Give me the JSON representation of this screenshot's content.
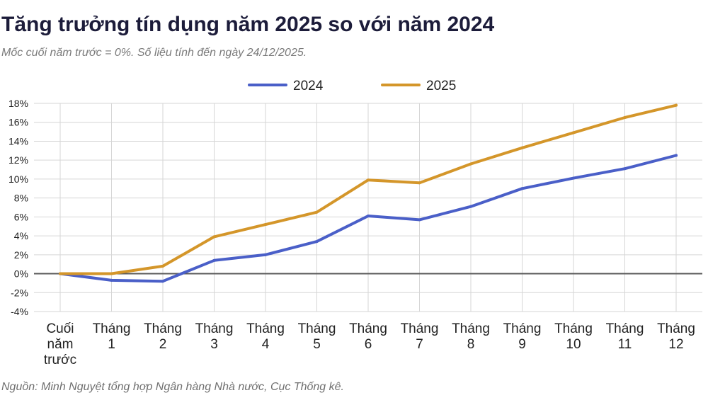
{
  "chart_data": {
    "type": "line",
    "title": "Tăng trưởng tín dụng năm 2025 so với năm 2024",
    "subtitle": "Mốc cuối năm trước = 0%. Số liệu tính đến ngày 24/12/2025.",
    "source": "Nguồn: Minh Nguyệt tổng hợp Ngân hàng Nhà nước, Cục Thống kê.",
    "xlabel": "",
    "ylabel": "",
    "ylim": [
      -4,
      18
    ],
    "y_ticks": [
      "-4%",
      "-2%",
      "0%",
      "2%",
      "4%",
      "6%",
      "8%",
      "10%",
      "12%",
      "14%",
      "16%",
      "18%"
    ],
    "y_tick_values": [
      -4,
      -2,
      0,
      2,
      4,
      6,
      8,
      10,
      12,
      14,
      16,
      18
    ],
    "grid": true,
    "legend_position": "top-center",
    "categories": [
      [
        "Cuối",
        "năm",
        "trước"
      ],
      [
        "Tháng",
        "1"
      ],
      [
        "Tháng",
        "2"
      ],
      [
        "Tháng",
        "3"
      ],
      [
        "Tháng",
        "4"
      ],
      [
        "Tháng",
        "5"
      ],
      [
        "Tháng",
        "6"
      ],
      [
        "Tháng",
        "7"
      ],
      [
        "Tháng",
        "8"
      ],
      [
        "Tháng",
        "9"
      ],
      [
        "Tháng",
        "10"
      ],
      [
        "Tháng",
        "11"
      ],
      [
        "Tháng",
        "12"
      ]
    ],
    "series": [
      {
        "name": "2024",
        "color": "#4a5fc8",
        "values": [
          0,
          -0.7,
          -0.8,
          1.4,
          2.0,
          3.4,
          6.1,
          5.7,
          7.1,
          9.0,
          10.1,
          11.1,
          12.5
        ]
      },
      {
        "name": "2025",
        "color": "#d4962a",
        "values": [
          0,
          0,
          0.8,
          3.9,
          5.2,
          6.5,
          9.9,
          9.6,
          11.6,
          13.3,
          14.9,
          16.5,
          17.8
        ]
      }
    ]
  }
}
